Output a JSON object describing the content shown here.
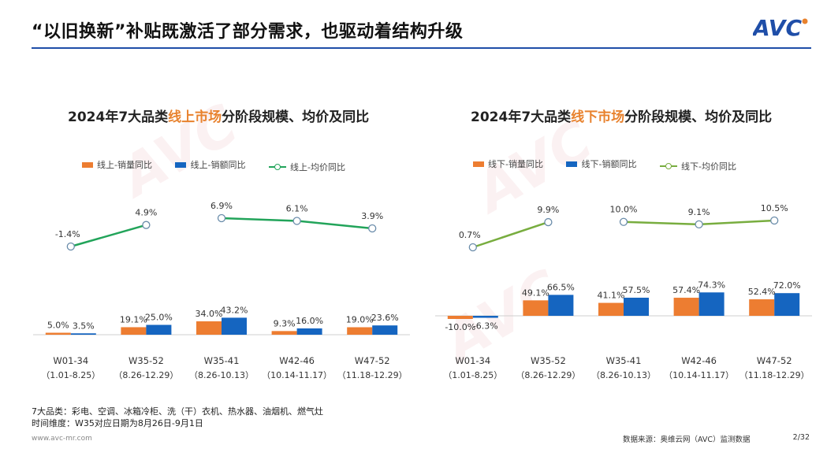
{
  "page": {
    "title": "“以旧换新”补贴既激活了部分需求，也驱动着结构升级",
    "logo_text": "AVC",
    "notes": [
      "7大品类：彩电、空调、冰箱冷柜、洗（干）衣机、热水器、油烟机、燃气灶",
      "时间维度：W35对应日期为8月26日-9月1日"
    ],
    "footer_left": "www.avc-mr.com",
    "footer_source": "数据来源：奥维云网（AVC）监测数据",
    "page_number": "2/32",
    "watermark": "AVC"
  },
  "colors": {
    "volume": "#ed7d31",
    "value": "#1565c0",
    "online_line": "#22a45a",
    "offline_line": "#78ad3f",
    "accent": "#e8822e",
    "brand": "#1f4ea8"
  },
  "chart_data": [
    {
      "type": "bar+line",
      "title_prefix": "2024年7大品类",
      "title_highlight": "线上市场",
      "title_suffix": "分阶段规模、均价及同比",
      "categories": [
        "W01-34",
        "W35-52",
        "W35-41",
        "W42-46",
        "W47-52"
      ],
      "category_dates": [
        "（1.01-8.25）",
        "（8.26-12.29）",
        "（8.26-10.13）",
        "（10.14-11.17）",
        "（11.18-12.29）"
      ],
      "series": [
        {
          "name": "线上-销量同比",
          "kind": "bar",
          "values": [
            5.0,
            19.1,
            34.0,
            9.3,
            19.0
          ],
          "labels": [
            "5.0%",
            "19.1%",
            "34.0%",
            "9.3%",
            "19.0%"
          ]
        },
        {
          "name": "线上-销额同比",
          "kind": "bar",
          "values": [
            3.5,
            25.0,
            43.2,
            16.0,
            23.6
          ],
          "labels": [
            "3.5%",
            "25.0%",
            "43.2%",
            "16.0%",
            "23.6%"
          ]
        },
        {
          "name": "线上-均价同比",
          "kind": "line",
          "values": [
            -1.4,
            4.9,
            6.9,
            6.1,
            3.9
          ],
          "labels": [
            "-1.4%",
            "4.9%",
            "6.9%",
            "6.1%",
            "3.9%"
          ]
        }
      ]
    },
    {
      "type": "bar+line",
      "title_prefix": "2024年7大品类",
      "title_highlight": "线下市场",
      "title_suffix": "分阶段规模、均价及同比",
      "categories": [
        "W01-34",
        "W35-52",
        "W35-41",
        "W42-46",
        "W47-52"
      ],
      "category_dates": [
        "（1.01-8.25）",
        "（8.26-12.29）",
        "（8.26-10.13）",
        "（10.14-11.17）",
        "（11.18-12.29）"
      ],
      "series": [
        {
          "name": "线下-销量同比",
          "kind": "bar",
          "values": [
            -10.0,
            49.1,
            41.1,
            57.4,
            52.4
          ],
          "labels": [
            "-10.0%",
            "49.1%",
            "41.1%",
            "57.4%",
            "52.4%"
          ]
        },
        {
          "name": "线下-销额同比",
          "kind": "bar",
          "values": [
            -6.3,
            66.5,
            57.5,
            74.3,
            72.0
          ],
          "labels": [
            "-6.3%",
            "66.5%",
            "57.5%",
            "74.3%",
            "72.0%"
          ]
        },
        {
          "name": "线下-均价同比",
          "kind": "line",
          "values": [
            0.7,
            9.9,
            10.0,
            9.1,
            10.5
          ],
          "labels": [
            "0.7%",
            "9.9%",
            "10.0%",
            "9.1%",
            "10.5%"
          ]
        }
      ]
    }
  ]
}
